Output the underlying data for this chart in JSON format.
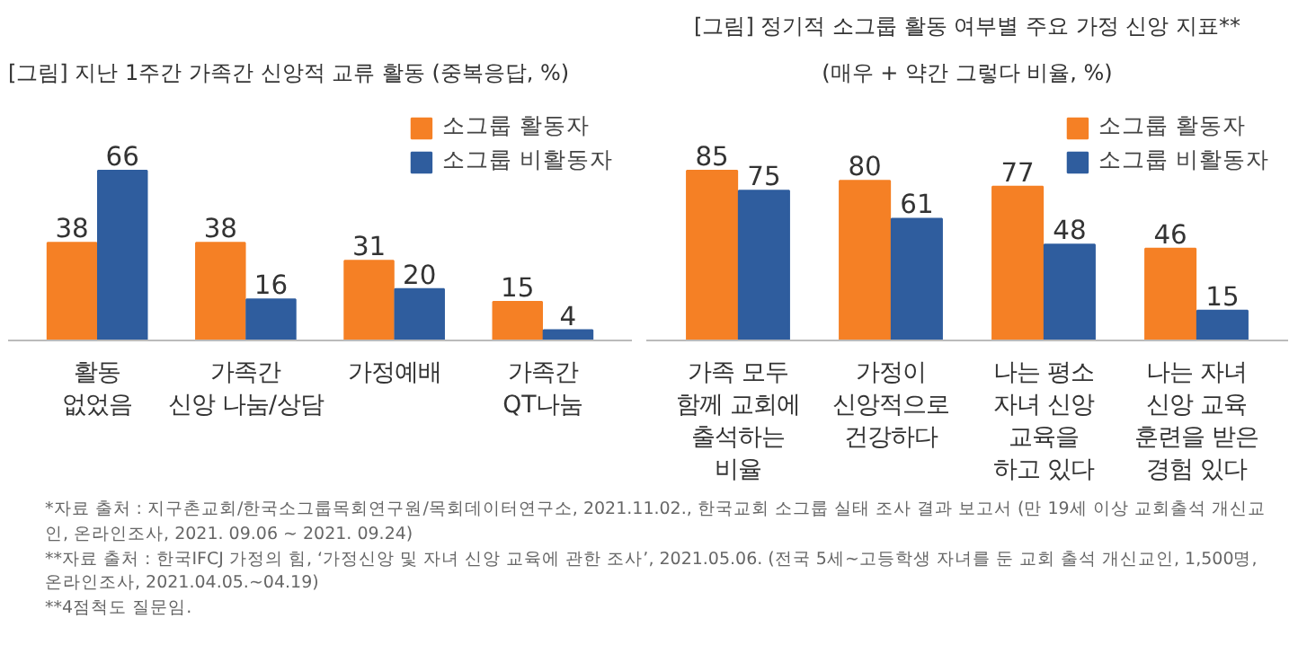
{
  "chart_data": [
    {
      "type": "bar",
      "title": "[그림] 지난 1주간 가족간 신앙적 교류 활동 (중복응답, %)",
      "categories": [
        "활동\n없었음",
        "가족간\n신앙 나눔/상담",
        "가정예배",
        "가족간\nQT나눔"
      ],
      "series": [
        {
          "name": "소그룹 활동자",
          "color": "#f58025",
          "values": [
            38,
            38,
            31,
            15
          ]
        },
        {
          "name": "소그룹 비활동자",
          "color": "#2f5d9e",
          "values": [
            66,
            16,
            20,
            4
          ]
        }
      ],
      "data_labels": true,
      "legend": "top right",
      "grid": false
    },
    {
      "type": "bar",
      "title": "[그림] 정기적 소그룹 활동 여부별 주요 가정 신앙 지표**",
      "subtitle": "(매우 + 약간 그렇다 비율, %)",
      "categories": [
        "가족 모두\n함께 교회에\n출석하는\n비율",
        "가정이\n신앙적으로\n건강하다",
        "나는 평소\n자녀 신앙\n교육을\n하고 있다",
        "나는 자녀\n신앙 교육\n훈련을 받은\n경험 있다"
      ],
      "series": [
        {
          "name": "소그룹 활동자",
          "color": "#f58025",
          "values": [
            85,
            80,
            77,
            46
          ]
        },
        {
          "name": "소그룹 비활동자",
          "color": "#2f5d9e",
          "values": [
            75,
            61,
            48,
            15
          ]
        }
      ],
      "data_labels": true,
      "legend": "top right",
      "grid": false,
      "annotations": [
        "*자료 출처 : 지구촌교회/한국소그룹목회연구원/목회데이터연구소, 2021.11.02., 한국교회 소그룹 실태 조사 결과 보고서 (만 19세 이상 교회출석 개신교인, 온라인조사, 2021. 09.06 ~ 2021. 09.24)",
        "**자료 출처 : 한국IFCJ 가정의 힘, ‘가정신앙 및 자녀 신앙 교육에 관한 조사’, 2021.05.06. (전국 5세~고등학생 자녀를 둔 교회 출석 개신교인, 1,500명, 온라인조사, 2021.04.05.~04.19)",
        "**4점척도 질문임."
      ]
    }
  ]
}
